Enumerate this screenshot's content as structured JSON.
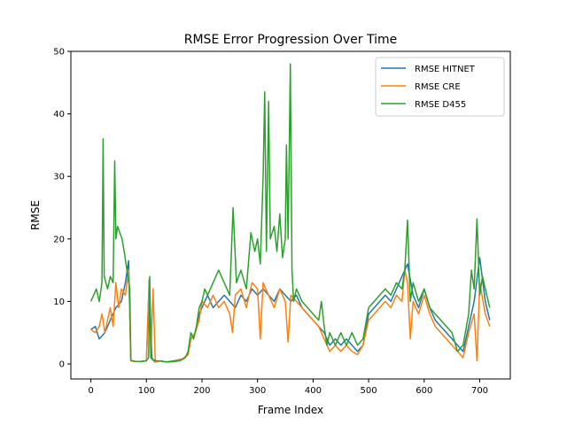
{
  "chart_data": {
    "type": "line",
    "title": "RMSE Error Progression Over Time",
    "xlabel": "Frame Index",
    "ylabel": "RMSE",
    "xlim": [
      -36,
      755
    ],
    "ylim": [
      -2.4,
      50
    ],
    "xticks": [
      0,
      100,
      200,
      300,
      400,
      500,
      600,
      700
    ],
    "yticks": [
      0,
      10,
      20,
      30,
      40,
      50
    ],
    "grid": false,
    "legend": {
      "placement": "top-right"
    },
    "series": [
      {
        "name": "RMSE HITNET",
        "color": "#1f77b4",
        "points": [
          [
            0,
            5.5
          ],
          [
            8,
            6
          ],
          [
            15,
            4
          ],
          [
            25,
            5
          ],
          [
            35,
            7
          ],
          [
            45,
            9
          ],
          [
            55,
            10
          ],
          [
            62,
            13
          ],
          [
            68,
            16.5
          ],
          [
            72,
            0.5
          ],
          [
            80,
            0.4
          ],
          [
            90,
            0.4
          ],
          [
            100,
            0.5
          ],
          [
            105,
            13.5
          ],
          [
            110,
            1
          ],
          [
            115,
            0.3
          ],
          [
            125,
            0.5
          ],
          [
            135,
            0.3
          ],
          [
            150,
            0.5
          ],
          [
            165,
            0.8
          ],
          [
            175,
            1.5
          ],
          [
            180,
            4
          ],
          [
            188,
            5
          ],
          [
            195,
            8
          ],
          [
            200,
            9
          ],
          [
            210,
            11
          ],
          [
            220,
            9
          ],
          [
            230,
            10
          ],
          [
            240,
            11
          ],
          [
            250,
            10
          ],
          [
            260,
            9
          ],
          [
            270,
            11
          ],
          [
            280,
            10
          ],
          [
            290,
            12
          ],
          [
            300,
            11
          ],
          [
            310,
            12
          ],
          [
            320,
            11
          ],
          [
            330,
            10
          ],
          [
            340,
            12
          ],
          [
            350,
            11
          ],
          [
            360,
            10
          ],
          [
            370,
            11
          ],
          [
            380,
            9
          ],
          [
            390,
            8
          ],
          [
            400,
            7
          ],
          [
            410,
            6
          ],
          [
            420,
            5
          ],
          [
            430,
            3
          ],
          [
            440,
            4
          ],
          [
            450,
            3
          ],
          [
            460,
            4
          ],
          [
            470,
            3
          ],
          [
            480,
            2
          ],
          [
            490,
            3
          ],
          [
            500,
            8
          ],
          [
            510,
            9
          ],
          [
            520,
            10
          ],
          [
            530,
            11
          ],
          [
            540,
            10
          ],
          [
            550,
            12
          ],
          [
            560,
            14
          ],
          [
            570,
            16
          ],
          [
            580,
            11
          ],
          [
            590,
            9
          ],
          [
            600,
            12
          ],
          [
            610,
            9
          ],
          [
            620,
            7
          ],
          [
            630,
            6
          ],
          [
            640,
            5
          ],
          [
            650,
            4
          ],
          [
            660,
            3
          ],
          [
            670,
            2
          ],
          [
            680,
            6
          ],
          [
            690,
            10
          ],
          [
            700,
            17
          ],
          [
            710,
            10
          ],
          [
            718,
            7
          ]
        ]
      },
      {
        "name": "RMSE CRE",
        "color": "#ff7f0e",
        "points": [
          [
            0,
            5.5
          ],
          [
            8,
            5
          ],
          [
            15,
            6
          ],
          [
            20,
            8
          ],
          [
            25,
            5
          ],
          [
            30,
            7
          ],
          [
            35,
            9
          ],
          [
            40,
            6
          ],
          [
            45,
            13
          ],
          [
            50,
            9
          ],
          [
            55,
            12
          ],
          [
            62,
            11
          ],
          [
            68,
            15
          ],
          [
            72,
            0.5
          ],
          [
            80,
            0.4
          ],
          [
            90,
            0.4
          ],
          [
            100,
            0.5
          ],
          [
            105,
            13
          ],
          [
            108,
            1
          ],
          [
            112,
            12
          ],
          [
            116,
            0.3
          ],
          [
            125,
            0.5
          ],
          [
            135,
            0.3
          ],
          [
            150,
            0.4
          ],
          [
            165,
            0.8
          ],
          [
            175,
            1.5
          ],
          [
            180,
            4
          ],
          [
            188,
            5
          ],
          [
            195,
            7
          ],
          [
            200,
            10
          ],
          [
            210,
            9
          ],
          [
            220,
            11
          ],
          [
            230,
            9
          ],
          [
            240,
            10
          ],
          [
            250,
            8
          ],
          [
            255,
            5
          ],
          [
            260,
            11
          ],
          [
            270,
            12
          ],
          [
            280,
            9
          ],
          [
            290,
            13
          ],
          [
            300,
            12
          ],
          [
            305,
            4
          ],
          [
            310,
            13
          ],
          [
            320,
            11
          ],
          [
            330,
            9
          ],
          [
            340,
            12
          ],
          [
            350,
            10
          ],
          [
            355,
            3.5
          ],
          [
            360,
            11
          ],
          [
            370,
            10
          ],
          [
            380,
            9
          ],
          [
            390,
            8
          ],
          [
            400,
            7
          ],
          [
            410,
            6
          ],
          [
            420,
            4
          ],
          [
            430,
            2
          ],
          [
            440,
            3
          ],
          [
            450,
            2
          ],
          [
            460,
            3
          ],
          [
            470,
            2
          ],
          [
            480,
            1.5
          ],
          [
            490,
            3
          ],
          [
            500,
            7
          ],
          [
            510,
            8
          ],
          [
            520,
            9
          ],
          [
            530,
            10
          ],
          [
            540,
            9
          ],
          [
            550,
            11
          ],
          [
            560,
            10
          ],
          [
            565,
            15
          ],
          [
            570,
            13
          ],
          [
            575,
            4
          ],
          [
            580,
            10
          ],
          [
            590,
            8
          ],
          [
            600,
            11
          ],
          [
            610,
            8
          ],
          [
            620,
            6
          ],
          [
            630,
            5
          ],
          [
            640,
            4
          ],
          [
            650,
            3
          ],
          [
            660,
            2
          ],
          [
            670,
            1
          ],
          [
            680,
            5
          ],
          [
            690,
            8
          ],
          [
            695,
            0.5
          ],
          [
            700,
            13
          ],
          [
            710,
            8
          ],
          [
            718,
            6
          ]
        ]
      },
      {
        "name": "RMSE D455",
        "color": "#2ca02c",
        "points": [
          [
            0,
            10
          ],
          [
            5,
            11
          ],
          [
            10,
            12
          ],
          [
            15,
            10
          ],
          [
            20,
            13
          ],
          [
            22,
            36
          ],
          [
            24,
            14
          ],
          [
            30,
            12
          ],
          [
            35,
            14
          ],
          [
            40,
            13
          ],
          [
            43,
            32.5
          ],
          [
            45,
            20
          ],
          [
            48,
            22
          ],
          [
            52,
            21
          ],
          [
            56,
            20
          ],
          [
            60,
            18
          ],
          [
            65,
            15
          ],
          [
            70,
            12
          ],
          [
            72,
            0.6
          ],
          [
            80,
            0.4
          ],
          [
            90,
            0.4
          ],
          [
            100,
            0.5
          ],
          [
            104,
            1
          ],
          [
            106,
            14
          ],
          [
            108,
            1
          ],
          [
            112,
            0.6
          ],
          [
            120,
            0.5
          ],
          [
            130,
            0.4
          ],
          [
            140,
            0.3
          ],
          [
            150,
            0.4
          ],
          [
            160,
            0.5
          ],
          [
            170,
            1
          ],
          [
            175,
            2
          ],
          [
            180,
            5
          ],
          [
            185,
            4
          ],
          [
            190,
            6
          ],
          [
            195,
            9
          ],
          [
            200,
            10
          ],
          [
            205,
            12
          ],
          [
            210,
            11
          ],
          [
            220,
            13
          ],
          [
            230,
            15
          ],
          [
            240,
            13
          ],
          [
            250,
            11
          ],
          [
            256,
            25
          ],
          [
            262,
            13
          ],
          [
            270,
            15
          ],
          [
            280,
            12
          ],
          [
            288,
            21
          ],
          [
            295,
            18
          ],
          [
            300,
            20
          ],
          [
            305,
            16
          ],
          [
            310,
            30
          ],
          [
            313,
            43.5
          ],
          [
            316,
            18
          ],
          [
            320,
            42
          ],
          [
            323,
            20
          ],
          [
            330,
            22
          ],
          [
            335,
            18
          ],
          [
            340,
            24
          ],
          [
            345,
            17
          ],
          [
            350,
            20
          ],
          [
            352,
            35
          ],
          [
            355,
            20
          ],
          [
            357,
            33
          ],
          [
            359,
            48
          ],
          [
            362,
            15
          ],
          [
            365,
            10
          ],
          [
            370,
            12
          ],
          [
            380,
            10
          ],
          [
            390,
            9
          ],
          [
            400,
            8
          ],
          [
            410,
            7
          ],
          [
            415,
            10
          ],
          [
            420,
            6
          ],
          [
            425,
            3
          ],
          [
            430,
            5
          ],
          [
            440,
            3
          ],
          [
            450,
            5
          ],
          [
            460,
            3
          ],
          [
            470,
            5
          ],
          [
            480,
            3
          ],
          [
            490,
            4
          ],
          [
            500,
            9
          ],
          [
            510,
            10
          ],
          [
            520,
            11
          ],
          [
            530,
            12
          ],
          [
            540,
            11
          ],
          [
            550,
            13
          ],
          [
            560,
            12
          ],
          [
            565,
            15
          ],
          [
            570,
            23
          ],
          [
            575,
            10
          ],
          [
            580,
            13
          ],
          [
            590,
            10
          ],
          [
            600,
            12
          ],
          [
            610,
            9
          ],
          [
            620,
            8
          ],
          [
            630,
            7
          ],
          [
            640,
            6
          ],
          [
            650,
            5
          ],
          [
            660,
            2
          ],
          [
            670,
            3
          ],
          [
            680,
            8
          ],
          [
            685,
            15
          ],
          [
            690,
            12
          ],
          [
            695,
            23.2
          ],
          [
            700,
            11
          ],
          [
            705,
            14
          ],
          [
            710,
            12
          ],
          [
            718,
            9
          ]
        ]
      }
    ]
  }
}
